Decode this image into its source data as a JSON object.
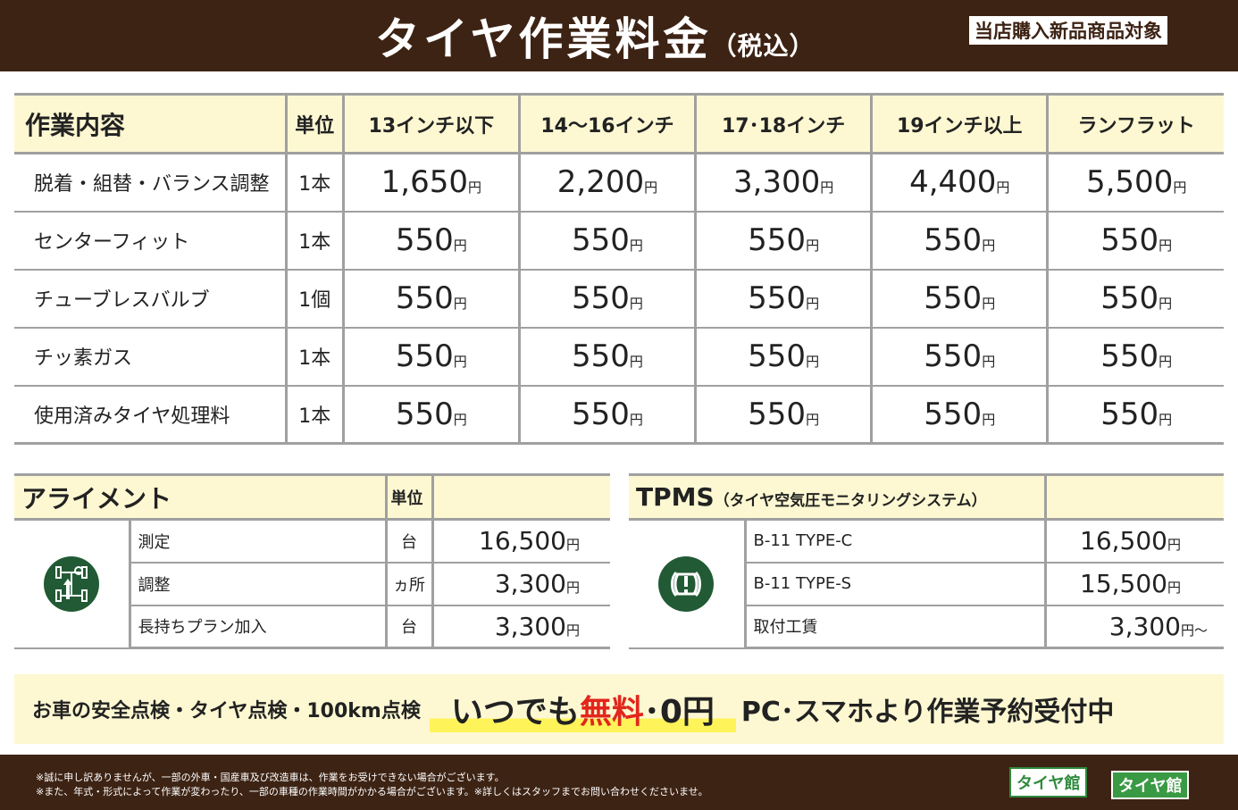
{
  "header": {
    "title": "タイヤ作業料金",
    "title_suffix": "（税込）",
    "badge": "当店購入新品商品対象"
  },
  "main_table": {
    "headers": [
      "作業内容",
      "単位",
      "13インチ以下",
      "14〜16インチ",
      "17･18インチ",
      "19インチ以上",
      "ランフラット"
    ],
    "rows": [
      {
        "name": "脱着・組替・バランス調整",
        "unit": "1本",
        "prices": [
          "1,650",
          "2,200",
          "3,300",
          "4,400",
          "5,500"
        ]
      },
      {
        "name": "センターフィット",
        "unit": "1本",
        "prices": [
          "550",
          "550",
          "550",
          "550",
          "550"
        ]
      },
      {
        "name": "チューブレスバルブ",
        "unit": "1個",
        "prices": [
          "550",
          "550",
          "550",
          "550",
          "550"
        ]
      },
      {
        "name": "チッ素ガス",
        "unit": "1本",
        "prices": [
          "550",
          "550",
          "550",
          "550",
          "550"
        ]
      },
      {
        "name": "使用済みタイヤ処理料",
        "unit": "1本",
        "prices": [
          "550",
          "550",
          "550",
          "550",
          "550"
        ]
      }
    ]
  },
  "currency": "円",
  "alignment": {
    "title": "アライメント",
    "unit_header": "単位",
    "icon": "alignment-icon",
    "rows": [
      {
        "name": "測定",
        "unit": "台",
        "price": "16,500"
      },
      {
        "name": "調整",
        "unit": "ヵ所",
        "price": "3,300"
      },
      {
        "name": "長持ちプラン加入",
        "unit": "台",
        "price": "3,300"
      }
    ]
  },
  "tpms": {
    "title": "TPMS",
    "subtitle": "（タイヤ空気圧モニタリングシステム）",
    "icon": "tire-pressure-warning-icon",
    "rows": [
      {
        "name": "B-11 TYPE-C",
        "price": "16,500",
        "suffix": ""
      },
      {
        "name": "B-11 TYPE-S",
        "price": "15,500",
        "suffix": ""
      },
      {
        "name": "取付工賃",
        "price": "3,300",
        "suffix": "〜"
      }
    ]
  },
  "banner": {
    "left": "お車の安全点検・タイヤ点検・100km点検",
    "middle_a": "いつでも",
    "middle_b": "無料",
    "middle_c": "･0円",
    "right": "PC･スマホより作業予約受付中"
  },
  "footer": {
    "note1": "※誠に申し訳ありませんが、一部の外車・国産車及び改造車は、作業をお受けできない場合がございます。",
    "note2": "※また、年式・形式によって作業が変わったり、一部の車種の作業時間がかかる場合がございます。※詳しくはスタッフまでお問い合わせくださいませ。",
    "logo1": "タイヤ館",
    "logo2": "タイヤ館"
  },
  "colors": {
    "brown": "#3d2314",
    "cream": "#fdf8d2",
    "green": "#215a34",
    "red": "#e2261c"
  }
}
